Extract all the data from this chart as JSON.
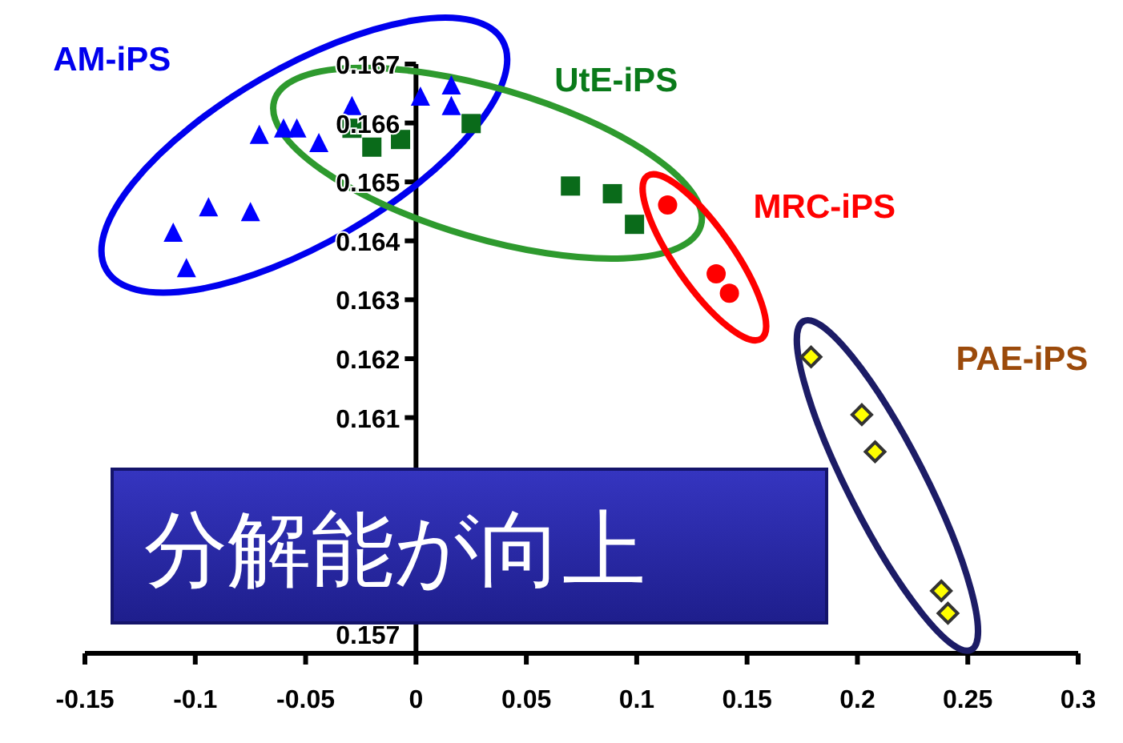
{
  "chart_data": {
    "type": "scatter",
    "xlim": [
      -0.15,
      0.3
    ],
    "ylim": [
      0.157,
      0.167
    ],
    "xticks": [
      -0.15,
      -0.1,
      -0.05,
      0,
      0.05,
      0.1,
      0.15,
      0.2,
      0.25,
      0.3
    ],
    "yticks": [
      0.157,
      0.161,
      0.162,
      0.163,
      0.164,
      0.165,
      0.166,
      0.167
    ],
    "grid": false,
    "annotations": [
      "分解能が向上"
    ],
    "series": [
      {
        "name": "AM-iPS",
        "color": "#0000ff",
        "marker": "triangle",
        "x": [
          -0.11,
          -0.104,
          -0.094,
          -0.075,
          -0.071,
          -0.06,
          -0.054,
          -0.044,
          -0.029,
          0.002,
          0.016,
          0.016
        ],
        "values": [
          0.16412,
          0.16352,
          0.16455,
          0.16447,
          0.16578,
          0.16589,
          0.16589,
          0.16564,
          0.16627,
          0.16643,
          0.16662,
          0.16627
        ]
      },
      {
        "name": "UtE-iPS",
        "color": "#0a6b1a",
        "marker": "square",
        "x": [
          -0.029,
          -0.02,
          -0.007,
          0.025,
          0.07,
          0.089,
          0.099
        ],
        "values": [
          0.16591,
          0.16559,
          0.16572,
          0.16599,
          0.16493,
          0.1648,
          0.16428
        ]
      },
      {
        "name": "MRC-iPS",
        "color": "#ff0000",
        "marker": "circle",
        "x": [
          0.114,
          0.136,
          0.142
        ],
        "values": [
          0.16461,
          0.16344,
          0.16311
        ]
      },
      {
        "name": "PAE-iPS",
        "color": "#ffff00",
        "marker": "diamond",
        "x": [
          0.179,
          0.202,
          0.208,
          0.238,
          0.241
        ],
        "values": [
          0.16203,
          0.16105,
          0.16042,
          0.15806,
          0.15768
        ]
      }
    ]
  }
}
